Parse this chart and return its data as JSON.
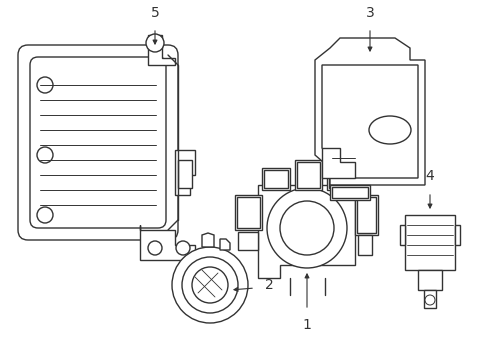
{
  "bg_color": "#ffffff",
  "line_color": "#333333",
  "line_width": 1.0,
  "fig_width": 4.9,
  "fig_height": 3.6,
  "dpi": 100
}
